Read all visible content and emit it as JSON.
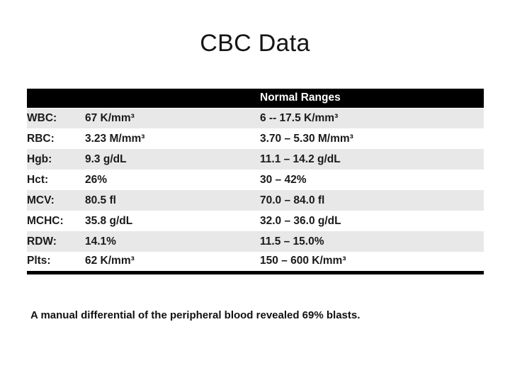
{
  "slide": {
    "title": "CBC Data",
    "footnote": "A manual differential of the peripheral blood revealed 69% blasts."
  },
  "table": {
    "header_label": "Normal Ranges",
    "rows": [
      {
        "label": "WBC:",
        "value": "67 K/mm³",
        "range": "6 -- 17.5 K/mm³"
      },
      {
        "label": "RBC:",
        "value": "3.23 M/mm³",
        "range": "3.70 – 5.30 M/mm³"
      },
      {
        "label": "Hgb:",
        "value": "9.3 g/dL",
        "range": "11.1 – 14.2 g/dL"
      },
      {
        "label": "Hct:",
        "value": "26%",
        "range": "30 – 42%"
      },
      {
        "label": "MCV:",
        "value": "80.5 fl",
        "range": "70.0 – 84.0 fl"
      },
      {
        "label": "MCHC:",
        "value": "35.8 g/dL",
        "range": "32.0 – 36.0 g/dL"
      },
      {
        "label": "RDW:",
        "value": "14.1%",
        "range": "11.5 – 15.0%"
      },
      {
        "label": "Plts:",
        "value": "62 K/mm³",
        "range": "150 – 600 K/mm³"
      }
    ]
  },
  "colors": {
    "page_bg": "#ffffff",
    "header_bg": "#000000",
    "header_text": "#ffffff",
    "band_row_bg": "#e8e8e8",
    "text": "#1a1a1a"
  }
}
